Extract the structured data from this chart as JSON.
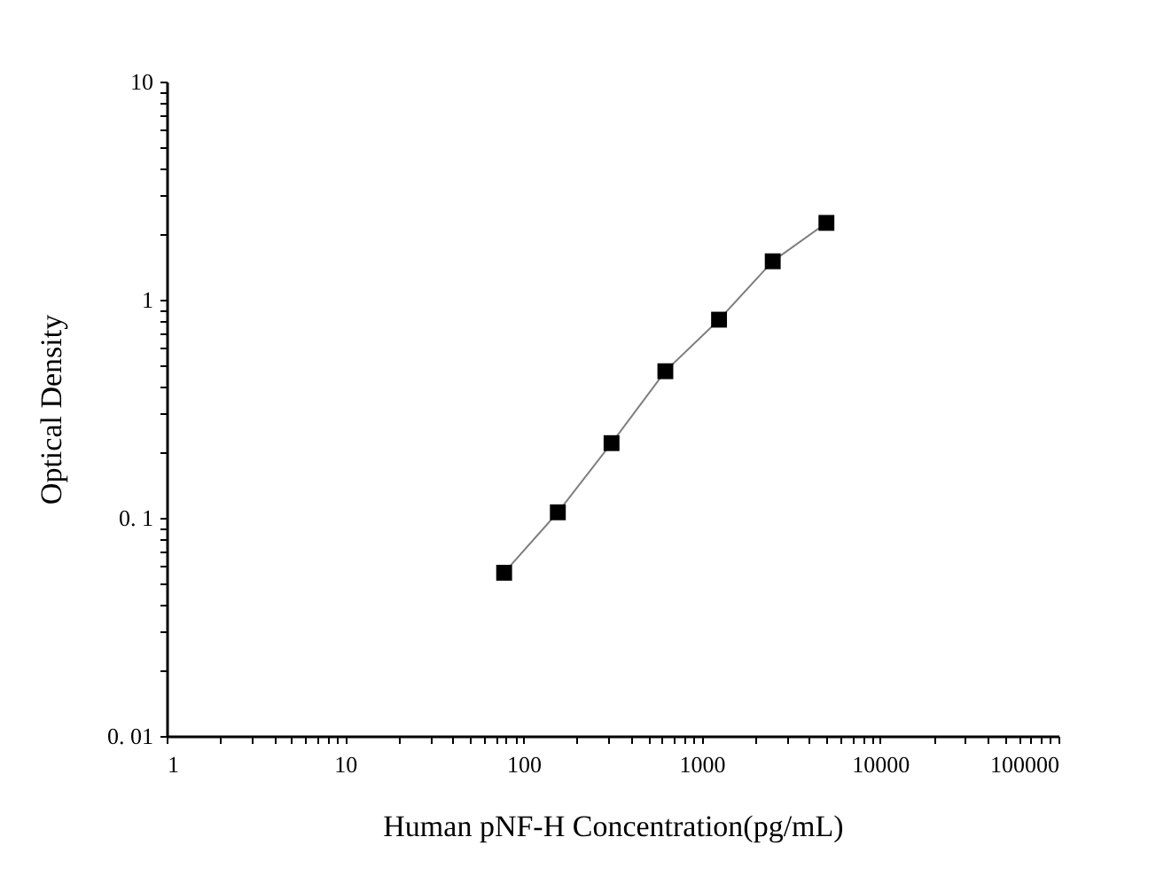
{
  "chart_data": {
    "type": "line",
    "xlabel": "Human pNF-H Concentration(pg/mL)",
    "ylabel": "Optical Density",
    "x": [
      78,
      156,
      312,
      625,
      1250,
      2500,
      5000
    ],
    "series": [
      {
        "color": "#000000",
        "values": [
          0.056,
          0.106,
          0.22,
          0.47,
          0.81,
          1.5,
          2.25
        ]
      }
    ],
    "marker": "square",
    "line_style": "solid",
    "log": "xy",
    "grid": false,
    "xlim": [
      1,
      100000
    ],
    "ylim": [
      0.01,
      10
    ],
    "xticks": [
      1,
      {
        "value": 2,
        "label": null
      },
      {
        "value": 3,
        "label": null
      },
      {
        "value": 4,
        "label": null
      },
      {
        "value": 5,
        "label": null
      },
      {
        "value": 6,
        "label": null
      },
      {
        "value": 7,
        "label": null
      },
      {
        "value": 8,
        "label": null
      },
      {
        "value": 9,
        "label": null
      },
      10,
      {
        "value": 20,
        "label": null
      },
      {
        "value": 30,
        "label": null
      },
      {
        "value": 40,
        "label": null
      },
      {
        "value": 50,
        "label": null
      },
      {
        "value": 60,
        "label": null
      },
      {
        "value": 70,
        "label": null
      },
      {
        "value": 80,
        "label": null
      },
      {
        "value": 90,
        "label": null
      },
      100,
      {
        "value": 200,
        "label": null
      },
      {
        "value": 300,
        "label": null
      },
      {
        "value": 400,
        "label": null
      },
      {
        "value": 500,
        "label": null
      },
      {
        "value": 600,
        "label": null
      },
      {
        "value": 700,
        "label": null
      },
      {
        "value": 800,
        "label": null
      },
      {
        "value": 900,
        "label": null
      },
      1000,
      {
        "value": 2000,
        "label": null
      },
      {
        "value": 3000,
        "label": null
      },
      {
        "value": 4000,
        "label": null
      },
      {
        "value": 5000,
        "label": null
      },
      {
        "value": 6000,
        "label": null
      },
      {
        "value": 7000,
        "label": null
      },
      {
        "value": 8000,
        "label": null
      },
      {
        "value": 9000,
        "label": null
      },
      10000,
      {
        "value": 20000,
        "label": null
      },
      {
        "value": 30000,
        "label": null
      },
      {
        "value": 40000,
        "label": null
      },
      {
        "value": 50000,
        "label": null
      },
      {
        "value": 60000,
        "label": null
      },
      {
        "value": 70000,
        "label": null
      },
      {
        "value": 80000,
        "label": null
      },
      {
        "value": 90000,
        "label": null
      },
      100000
    ],
    "yticks": [
      {
        "value": 0.01,
        "label": "0. 01"
      },
      {
        "value": 0.02,
        "label": null
      },
      {
        "value": 0.03,
        "label": null
      },
      {
        "value": 0.04,
        "label": null
      },
      {
        "value": 0.05,
        "label": null
      },
      {
        "value": 0.06,
        "label": null
      },
      {
        "value": 0.07,
        "label": null
      },
      {
        "value": 0.08,
        "label": null
      },
      {
        "value": 0.09,
        "label": null
      },
      {
        "value": 0.1,
        "label": "0. 1"
      },
      {
        "value": 0.2,
        "label": null
      },
      {
        "value": 0.3,
        "label": null
      },
      {
        "value": 0.4,
        "label": null
      },
      {
        "value": 0.5,
        "label": null
      },
      {
        "value": 0.6,
        "label": null
      },
      {
        "value": 0.7,
        "label": null
      },
      {
        "value": 0.8,
        "label": null
      },
      {
        "value": 0.9,
        "label": null
      },
      1,
      {
        "value": 2,
        "label": null
      },
      {
        "value": 3,
        "label": null
      },
      {
        "value": 4,
        "label": null
      },
      {
        "value": 5,
        "label": null
      },
      {
        "value": 6,
        "label": null
      },
      {
        "value": 7,
        "label": null
      },
      {
        "value": 8,
        "label": null
      },
      {
        "value": 9,
        "label": null
      },
      10
    ]
  }
}
